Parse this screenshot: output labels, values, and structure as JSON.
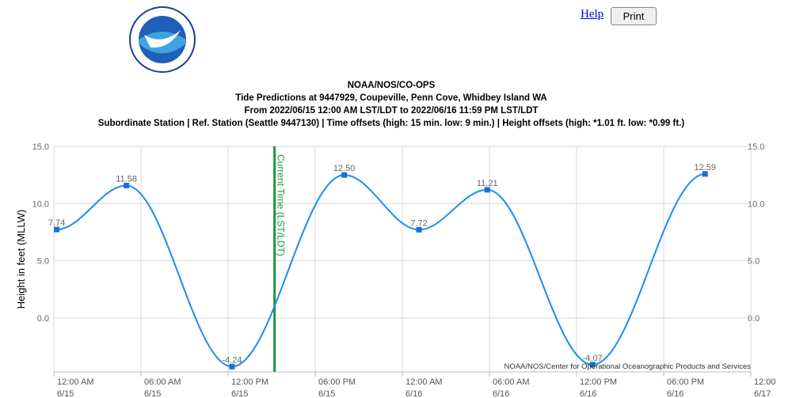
{
  "header": {
    "help": "Help",
    "print": "Print"
  },
  "chart_data": {
    "type": "line",
    "titles": [
      "NOAA/NOS/CO-OPS",
      "Tide Predictions at 9447929, Coupeville, Penn Cove, Whidbey Island WA",
      "From 2022/06/15 12:00 AM LST/LDT to 2022/06/16 11:59 PM LST/LDT",
      "Subordinate Station | Ref. Station (Seattle 9447130) | Time offsets (high: 15 min. low: 9 min.) | Height offsets (high: *1.01 ft. low: *0.99 ft.)"
    ],
    "y_label": "Height in feet (MLLW)",
    "credit": "NOAA/NOS/Center for Operational Oceanographic Products and Services",
    "x": [
      0.2,
      5.0,
      12.27,
      20.0,
      25.15,
      29.85,
      37.1,
      44.85
    ],
    "series": [
      {
        "name": "Predictions",
        "color": "#1e8cf0",
        "marker_color": "#1a6fd6",
        "values": [
          7.74,
          11.58,
          -4.24,
          12.5,
          7.72,
          11.21,
          -4.07,
          12.59
        ],
        "value_labels": [
          "7.74",
          "11.58",
          "-4.24",
          "12.50",
          "7.72",
          "11.21",
          "-4.07",
          "12.59"
        ]
      }
    ],
    "xlim": [
      0,
      48
    ],
    "xticks": [
      {
        "value": 0,
        "label": "12:00 AM\n6/15"
      },
      {
        "value": 6,
        "label": "06:00 AM\n6/15"
      },
      {
        "value": 12,
        "label": "12:00 PM\n6/15"
      },
      {
        "value": 18,
        "label": "06:00 PM\n6/15"
      },
      {
        "value": 24,
        "label": "12:00 AM\n6/16"
      },
      {
        "value": 30,
        "label": "06:00 AM\n6/16"
      },
      {
        "value": 36,
        "label": "12:00 PM\n6/16"
      },
      {
        "value": 42,
        "label": "06:00 PM\n6/16"
      },
      {
        "value": 48,
        "label": "12:00\n6/17"
      }
    ],
    "ylim": [
      -4.7,
      15
    ],
    "yticks": [
      {
        "value": 0,
        "label": "0.0"
      },
      {
        "value": 5,
        "label": "5.0"
      },
      {
        "value": 10,
        "label": "10.0"
      },
      {
        "value": 15,
        "label": "15.0"
      }
    ],
    "grid": true,
    "current_time": {
      "x": 15.2,
      "label": "Current Time (LST/LDT)",
      "color": "#1a9a3a"
    }
  }
}
